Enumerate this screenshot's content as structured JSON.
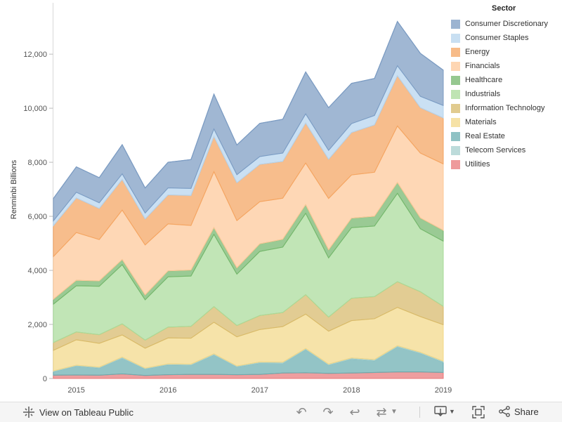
{
  "chart_data": {
    "type": "area",
    "stacked": true,
    "ylabel": "Renminbi Billions",
    "x_ticks": [
      "2015",
      "2016",
      "2017",
      "2018",
      "2019"
    ],
    "y_ticks": [
      0,
      2000,
      4000,
      6000,
      8000,
      10000,
      12000
    ],
    "y_tick_labels": [
      "0",
      "2,000",
      "4,000",
      "6,000",
      "8,000",
      "10,000",
      "12,000"
    ],
    "ylim": [
      0,
      13900
    ],
    "xlim": [
      "2014 Q4",
      "2019 Q1"
    ],
    "x": [
      "2014 Q4",
      "2015 Q1",
      "2015 Q2",
      "2015 Q3",
      "2015 Q4",
      "2016 Q1",
      "2016 Q2",
      "2016 Q3",
      "2016 Q4",
      "2017 Q1",
      "2017 Q2",
      "2017 Q3",
      "2017 Q4",
      "2018 Q1",
      "2018 Q2",
      "2018 Q3",
      "2018 Q4",
      "2019 Q1"
    ],
    "legend_title": "Sector",
    "legend_position": "right",
    "series": [
      {
        "name": "Utilities",
        "color": "#e8787a",
        "values": [
          120,
          130,
          120,
          170,
          110,
          140,
          150,
          150,
          140,
          150,
          200,
          210,
          190,
          200,
          220,
          240,
          240,
          220
        ]
      },
      {
        "name": "Real Estate",
        "color": "#6aadb0",
        "values": [
          130,
          330,
          270,
          580,
          240,
          370,
          340,
          720,
          290,
          420,
          360,
          860,
          300,
          520,
          440,
          930,
          690,
          380
        ]
      },
      {
        "name": "Telecom Services",
        "color": "#a5cfcd",
        "values": [
          30,
          30,
          30,
          40,
          30,
          30,
          40,
          40,
          30,
          40,
          40,
          40,
          40,
          40,
          40,
          40,
          40,
          40
        ]
      },
      {
        "name": "Materials",
        "color": "#f3d888",
        "values": [
          760,
          940,
          880,
          820,
          740,
          960,
          960,
          1170,
          1080,
          1200,
          1320,
          1270,
          1220,
          1380,
          1510,
          1420,
          1320,
          1350
        ]
      },
      {
        "name": "Information Technology",
        "color": "#d7b96a",
        "values": [
          290,
          290,
          320,
          410,
          300,
          400,
          440,
          580,
          420,
          520,
          520,
          720,
          520,
          830,
          820,
          950,
          920,
          680
        ]
      },
      {
        "name": "Industrials",
        "color": "#a9db9a",
        "values": [
          1420,
          1710,
          1790,
          2190,
          1490,
          1860,
          1860,
          2670,
          1900,
          2370,
          2420,
          3010,
          2190,
          2610,
          2610,
          3270,
          2330,
          2410
        ]
      },
      {
        "name": "Healthcare",
        "color": "#73b56b",
        "values": [
          180,
          200,
          200,
          190,
          180,
          220,
          220,
          250,
          230,
          280,
          290,
          320,
          300,
          350,
          360,
          400,
          400,
          400
        ]
      },
      {
        "name": "Financials",
        "color": "#fdc899",
        "values": [
          1580,
          1770,
          1530,
          1830,
          1850,
          1740,
          1650,
          2070,
          1750,
          1560,
          1520,
          1540,
          1900,
          1600,
          1630,
          2090,
          2400,
          2460
        ]
      },
      {
        "name": "Energy",
        "color": "#f4a460",
        "values": [
          1140,
          1280,
          1150,
          1130,
          960,
          1070,
          1110,
          1300,
          1400,
          1380,
          1360,
          1480,
          1450,
          1570,
          1750,
          1860,
          1680,
          1700
        ]
      },
      {
        "name": "Consumer Staples",
        "color": "#b5d4ee",
        "values": [
          180,
          210,
          210,
          210,
          220,
          260,
          260,
          280,
          300,
          290,
          310,
          340,
          330,
          330,
          350,
          370,
          420,
          460
        ]
      },
      {
        "name": "Consumer Discretionary",
        "color": "#7b9bc2",
        "values": [
          830,
          940,
          930,
          1080,
          930,
          950,
          1070,
          1290,
          1100,
          1230,
          1250,
          1550,
          1580,
          1490,
          1370,
          1640,
          1590,
          1310
        ]
      }
    ]
  },
  "legend": {
    "title": "Sector",
    "items": [
      {
        "label": "Consumer Discretionary",
        "color": "#7b9bc2"
      },
      {
        "label": "Consumer Staples",
        "color": "#b5d4ee"
      },
      {
        "label": "Energy",
        "color": "#f4a460"
      },
      {
        "label": "Financials",
        "color": "#fdc899"
      },
      {
        "label": "Healthcare",
        "color": "#73b56b"
      },
      {
        "label": "Industrials",
        "color": "#a9db9a"
      },
      {
        "label": "Information Technology",
        "color": "#d7b96a"
      },
      {
        "label": "Materials",
        "color": "#f3d888"
      },
      {
        "label": "Real Estate",
        "color": "#6aadb0"
      },
      {
        "label": "Telecom Services",
        "color": "#a5cfcd"
      },
      {
        "label": "Utilities",
        "color": "#e8787a"
      }
    ]
  },
  "toolbar": {
    "view_label": "View on Tableau Public",
    "share_label": "Share",
    "icons": [
      "tableau-logo-icon",
      "undo-icon",
      "redo-icon",
      "revert-icon",
      "refresh-icon",
      "dropdown-icon",
      "download-icon",
      "fullscreen-icon",
      "share-icon"
    ]
  }
}
